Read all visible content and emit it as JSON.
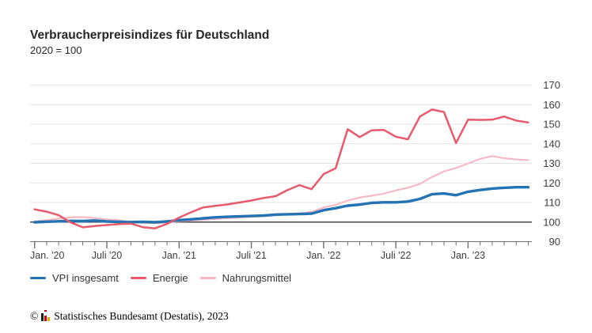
{
  "header": {
    "title": "Verbraucherpreisindizes für Deutschland",
    "subtitle": "2020 = 100"
  },
  "chart_data": {
    "type": "line",
    "title": "Verbraucherpreisindizes für Deutschland",
    "subtitle": "2020 = 100",
    "x_unit": "month",
    "x_range": "Jan 2020 - Jun 2023",
    "n_points": 42,
    "x_tick_labels": [
      "Jan. '20",
      "Juli '20",
      "Jan. '21",
      "Juli '21",
      "Jan. '22",
      "Juli '22",
      "Jan. '23"
    ],
    "x_tick_positions": [
      0,
      6,
      12,
      18,
      24,
      30,
      36
    ],
    "ylim": [
      90,
      170
    ],
    "y_ticks": [
      90,
      100,
      110,
      120,
      130,
      140,
      150,
      160,
      170
    ],
    "baseline_value": 100,
    "grid": true,
    "legend_position": "bottom-left",
    "series": [
      {
        "name": "VPI insgesamt",
        "color": "#2272b4",
        "stroke_width": 3.4,
        "values": [
          99.9,
          100.2,
          100.4,
          100.6,
          100.5,
          100.8,
          100.3,
          100.1,
          100.0,
          100.1,
          99.9,
          100.3,
          101.0,
          101.4,
          101.9,
          102.4,
          102.7,
          102.9,
          103.1,
          103.3,
          103.8,
          104.0,
          104.1,
          104.3,
          106.1,
          107.1,
          108.4,
          108.9,
          109.8,
          110.1,
          110.1,
          110.5,
          111.8,
          114.2,
          114.6,
          113.7,
          115.5,
          116.4,
          117.1,
          117.5,
          117.8,
          117.8
        ]
      },
      {
        "name": "Energie",
        "color": "#e8596b",
        "stroke_width": 2.5,
        "values": [
          106.5,
          105.3,
          103.5,
          99.8,
          97.3,
          98.0,
          98.5,
          99.0,
          99.2,
          97.4,
          96.8,
          99.1,
          102.3,
          105.0,
          107.5,
          108.3,
          109.0,
          110.0,
          111.0,
          112.3,
          113.2,
          116.3,
          118.9,
          116.8,
          124.5,
          127.5,
          147.4,
          143.4,
          146.9,
          147.1,
          143.6,
          142.3,
          153.9,
          157.5,
          156.2,
          140.4,
          152.3,
          152.2,
          152.3,
          153.9,
          151.8,
          150.9
        ]
      },
      {
        "name": "Nahrungsmittel",
        "color": "#f6b8c3",
        "stroke_width": 2.1,
        "values": [
          100.3,
          101.0,
          101.8,
          102.4,
          102.6,
          102.0,
          101.4,
          101.0,
          100.0,
          99.6,
          99.4,
          99.7,
          100.5,
          100.8,
          101.1,
          101.5,
          101.9,
          102.3,
          102.7,
          103.0,
          103.4,
          103.9,
          104.5,
          105.2,
          107.4,
          108.8,
          111.0,
          112.5,
          113.5,
          114.5,
          116.2,
          117.5,
          119.5,
          123.0,
          125.9,
          127.6,
          129.9,
          132.3,
          133.7,
          132.6,
          132.0,
          131.6
        ]
      }
    ]
  },
  "colors": {
    "grid": "#e4e4e4",
    "baseline_100": "#4a4a4a",
    "axis": "#6e6e6e",
    "axis_text": "#3d3d3d"
  },
  "footer": {
    "copyright": "©",
    "text": "Statistisches Bundesamt (Destatis), 2023",
    "logo_icon": "destatis-bar-chart-icon"
  }
}
